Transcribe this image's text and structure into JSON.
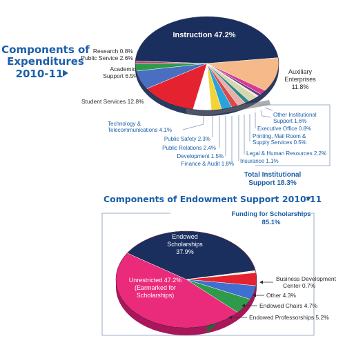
{
  "chart_data": [
    {
      "type": "pie",
      "title": "Components of Expenditures 2010-11",
      "slices": [
        {
          "label": "Instruction",
          "value": 47.2,
          "display": "Instruction  47.2%",
          "color": "#1b2f5e"
        },
        {
          "label": "Auxiliary Enterprises",
          "value": 11.8,
          "display": "Auxiliary Enterprises 11.8%",
          "color": "#f6b98a"
        },
        {
          "label": "Other Institutional Support",
          "value": 1.6,
          "display": "Other Institutional Support 1.6%",
          "color": "#d63c8c"
        },
        {
          "label": "Executive Office",
          "value": 0.8,
          "display": "Executive Office 0.8%",
          "color": "#6a3b8c"
        },
        {
          "label": "Printing, Mail Room & Supply Services",
          "value": 0.5,
          "display": "Printing, Mail Room & Supply Services 0.5%",
          "color": "#f0eccc"
        },
        {
          "label": "Legal & Human Resources",
          "value": 2.2,
          "display": "Legal & Human Resources 2.2%",
          "color": "#d8d6b0"
        },
        {
          "label": "Insurance",
          "value": 1.1,
          "display": "Insurance 1.1%",
          "color": "#2e8a8a"
        },
        {
          "label": "Finance & Audit",
          "value": 1.8,
          "display": "Finance & Audit 1.8%",
          "color": "#e8b0a8"
        },
        {
          "label": "Development",
          "value": 1.5,
          "display": "Development 1.5%",
          "color": "#d94a4a"
        },
        {
          "label": "Public Relations",
          "value": 2.4,
          "display": "Public Relations 2.4%",
          "color": "#2aa3d8"
        },
        {
          "label": "Public Safety",
          "value": 2.3,
          "display": "Public Safety 2.3%",
          "color": "#f2d43a"
        },
        {
          "label": "Technology & Telecommunications",
          "value": 4.1,
          "display": "Technology & Telecommunications 4.1%",
          "color": "#ffffff"
        },
        {
          "label": "Student Services",
          "value": 12.8,
          "display": "Student Services 12.8%",
          "color": "#e52330"
        },
        {
          "label": "Academic Support",
          "value": 6.5,
          "display": "Academic Support 6.5%",
          "color": "#4a6fc0"
        },
        {
          "label": "Public Service",
          "value": 2.6,
          "display": "Public Service 2.6%",
          "color": "#2e9a4a"
        },
        {
          "label": "Research",
          "value": 0.8,
          "display": "Research 0.8%",
          "color": "#c43e6a"
        }
      ],
      "group_total": {
        "label": "Total Institutional Support",
        "value": 18.3,
        "display": "Total Institutional Support 18.3%"
      }
    },
    {
      "type": "pie",
      "title": "Components of Endowment Support 2010-11",
      "slices": [
        {
          "label": "Endowed Scholarships",
          "value": 37.9,
          "display": "Endowed Scholarships 37.9%",
          "color": "#1b2f5e"
        },
        {
          "label": "Business Development Center",
          "value": 0.7,
          "display": "Business Development Center 0.7%",
          "color": "#f4f2d8"
        },
        {
          "label": "Other",
          "value": 4.3,
          "display": "Other 4.3%",
          "color": "#e52330"
        },
        {
          "label": "Endowed Chairs",
          "value": 4.7,
          "display": "Endowed Chairs 4.7%",
          "color": "#3f6fcf"
        },
        {
          "label": "Endowed Professorships",
          "value": 5.2,
          "display": "Endowed Professorships 5.2%",
          "color": "#2e9a4a"
        },
        {
          "label": "Unrestricted (Earmarked for Scholarships)",
          "value": 47.2,
          "display": "Unrestricted 47.2% (Earmarked for Scholarships)",
          "color": "#ea2a7a"
        }
      ],
      "group_total": {
        "label": "Funding for Scholarships",
        "value": 85.1,
        "display": "Funding for Scholarships 85.1%"
      }
    }
  ],
  "text": {
    "exp_title1": "Components of",
    "exp_title2": "Expenditures",
    "exp_title3": "2010-11",
    "exp_instruction": "Instruction  47.2%",
    "exp_research": "Research 0.8%",
    "exp_public_service": "Public Service 2.6%",
    "exp_academic1": "Academic",
    "exp_academic2": "Support 6.5%",
    "exp_student": "Student Services 12.8%",
    "exp_aux1": "Auxiliary",
    "exp_aux2": "Enterprises",
    "exp_aux3": "11.8%",
    "exp_tech1": "Technology &",
    "exp_tech2": "Telecommunications 4.1%",
    "exp_safety": "Public Safety 2.3%",
    "exp_relations": "Public Relations 2.4%",
    "exp_development": "Development 1.5%",
    "exp_finance": "Finance & Audit 1.8%",
    "exp_insurance": "Insurance 1.1%",
    "exp_legal": "Legal & Human Resources 2.2%",
    "exp_printing1": "Printing, Mail Room &",
    "exp_printing2": "Supply Services 0.5%",
    "exp_exec": "Executive Office 0.8%",
    "exp_other1": "Other Institutional",
    "exp_other2": "Support 1.6%",
    "exp_total1": "Total Institutional",
    "exp_total2": "Support 18.3%",
    "end_title": "Components of Endowment Support 2010-11",
    "end_funding1": "Funding for Scholarships",
    "end_funding2": "85.1%",
    "end_scholar1": "Endowed",
    "end_scholar2": "Scholarships",
    "end_scholar3": "37.9%",
    "end_unres1": "Unrestricted  47.2%",
    "end_unres2": "(Earmarked for",
    "end_unres3": "Scholarships)",
    "end_bdc1": "Business Development",
    "end_bdc2": "Center  0.7%",
    "end_other": "Other  4.3%",
    "end_chairs": "Endowed Chairs 4.7%",
    "end_prof": "Endowed Professorships  5.2%"
  },
  "colors": {
    "accent_blue": "#1b5fa8",
    "navy": "#1b2f5e",
    "label_text": "#2b2b2b",
    "box_line": "#7f95b8"
  }
}
